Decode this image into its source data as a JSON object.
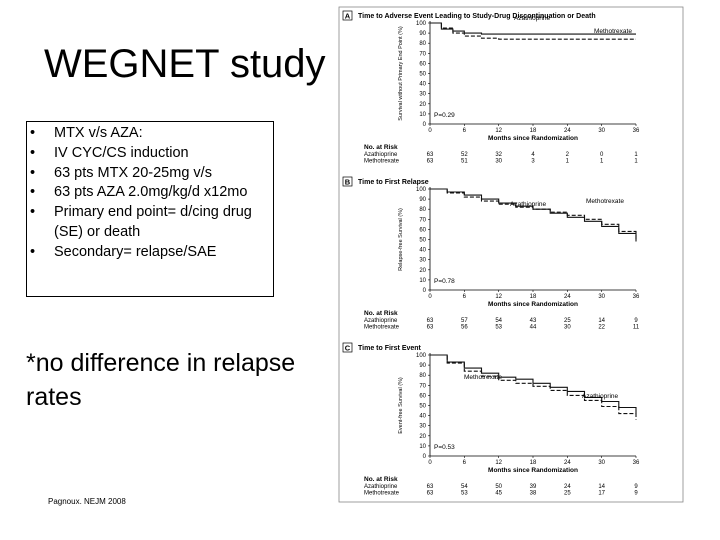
{
  "slide": {
    "title": "WEGNET study",
    "bullets": [
      "MTX v/s AZA:",
      "IV CYC/CS induction",
      "63 pts MTX 20-25mg v/s",
      "63 pts AZA 2.0mg/kg/d x12mo",
      "Primary end point= d/cing drug (SE) or death",
      "Secondary= relapse/SAE"
    ],
    "note": "*no difference in relapse rates",
    "citation": "Pagnoux. NEJM 2008"
  },
  "chart_data": [
    {
      "type": "line",
      "panel": "A",
      "title": "Time to Adverse Event Leading to Study-Drug Discontinuation or Death",
      "ylabel": "Survival without Primary End Point (%)",
      "xlabel": "Months since Randomization",
      "x_ticks": [
        0,
        6,
        12,
        18,
        24,
        30,
        36
      ],
      "y_ticks": [
        0,
        10,
        20,
        30,
        40,
        50,
        60,
        70,
        80,
        90,
        100
      ],
      "ylim": [
        0,
        100
      ],
      "xlim": [
        0,
        36
      ],
      "p_value": "P=0.29",
      "series": [
        {
          "name": "Azathioprine",
          "style": "solid",
          "x": [
            0,
            2,
            4,
            6,
            9,
            12,
            18,
            24,
            30,
            36
          ],
          "y": [
            100,
            94,
            92,
            90,
            89,
            89,
            89,
            89,
            89,
            89
          ]
        },
        {
          "name": "Methotrexate",
          "style": "dashed",
          "x": [
            0,
            2,
            4,
            6,
            9,
            12,
            18,
            24,
            30,
            36
          ],
          "y": [
            100,
            95,
            90,
            87,
            85,
            84,
            84,
            84,
            84,
            84
          ]
        }
      ],
      "at_risk": {
        "label": "No. at Risk",
        "rows": [
          {
            "name": "Azathioprine",
            "values": [
              "63",
              "52",
              "32",
              "4",
              "2",
              "0",
              "1"
            ]
          },
          {
            "name": "Methotrexate",
            "values": [
              "63",
              "51",
              "30",
              "3",
              "1",
              "1",
              "1"
            ]
          }
        ]
      }
    },
    {
      "type": "line",
      "panel": "B",
      "title": "Time to First Relapse",
      "ylabel": "Relapse-free Survival (%)",
      "xlabel": "Months since Randomization",
      "x_ticks": [
        0,
        6,
        12,
        18,
        24,
        30,
        36
      ],
      "y_ticks": [
        0,
        10,
        20,
        30,
        40,
        50,
        60,
        70,
        80,
        90,
        100
      ],
      "ylim": [
        0,
        100
      ],
      "xlim": [
        0,
        36
      ],
      "p_value": "P=0.78",
      "series": [
        {
          "name": "Azathioprine",
          "style": "solid",
          "x": [
            0,
            3,
            6,
            9,
            12,
            15,
            18,
            21,
            24,
            27,
            30,
            33,
            36
          ],
          "y": [
            100,
            97,
            94,
            90,
            86,
            83,
            80,
            76,
            72,
            68,
            63,
            56,
            48
          ]
        },
        {
          "name": "Methotrexate",
          "style": "dashed",
          "x": [
            0,
            3,
            6,
            9,
            12,
            15,
            18,
            21,
            24,
            27,
            30,
            33,
            36
          ],
          "y": [
            100,
            96,
            92,
            88,
            85,
            82,
            80,
            77,
            74,
            70,
            65,
            58,
            50
          ]
        }
      ],
      "at_risk": {
        "label": "No. at Risk",
        "rows": [
          {
            "name": "Azathioprine",
            "values": [
              "63",
              "57",
              "54",
              "43",
              "25",
              "14",
              "9"
            ]
          },
          {
            "name": "Methotrexate",
            "values": [
              "63",
              "56",
              "53",
              "44",
              "30",
              "22",
              "11"
            ]
          }
        ]
      }
    },
    {
      "type": "line",
      "panel": "C",
      "title": "Time to First Event",
      "ylabel": "Event-free Survival (%)",
      "xlabel": "Months since Randomization",
      "x_ticks": [
        0,
        6,
        12,
        18,
        24,
        30,
        36
      ],
      "y_ticks": [
        0,
        10,
        20,
        30,
        40,
        50,
        60,
        70,
        80,
        90,
        100
      ],
      "ylim": [
        0,
        100
      ],
      "xlim": [
        0,
        36
      ],
      "p_value": "P=0.53",
      "series": [
        {
          "name": "Azathioprine",
          "style": "solid",
          "x": [
            0,
            3,
            6,
            9,
            12,
            15,
            18,
            21,
            24,
            27,
            30,
            33,
            36
          ],
          "y": [
            100,
            93,
            87,
            82,
            78,
            76,
            72,
            68,
            64,
            58,
            54,
            48,
            42
          ]
        },
        {
          "name": "Methotrexate",
          "style": "dashed",
          "x": [
            0,
            3,
            6,
            9,
            12,
            15,
            18,
            21,
            24,
            27,
            30,
            33,
            36
          ],
          "y": [
            100,
            92,
            84,
            79,
            75,
            72,
            69,
            65,
            60,
            55,
            49,
            42,
            36
          ]
        }
      ],
      "at_risk": {
        "label": "No. at Risk",
        "rows": [
          {
            "name": "Azathioprine",
            "values": [
              "63",
              "54",
              "50",
              "39",
              "24",
              "14",
              "9"
            ]
          },
          {
            "name": "Methotrexate",
            "values": [
              "63",
              "53",
              "45",
              "38",
              "25",
              "17",
              "9"
            ]
          }
        ]
      }
    }
  ]
}
